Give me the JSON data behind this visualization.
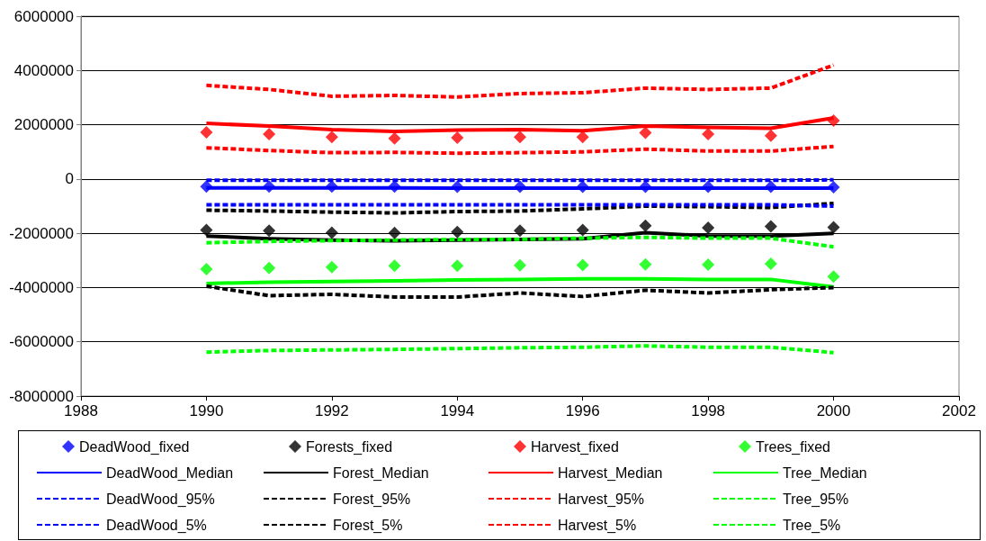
{
  "chart_data": {
    "type": "line",
    "x": [
      1990,
      1991,
      1992,
      1993,
      1994,
      1995,
      1996,
      1997,
      1998,
      1999,
      2000
    ],
    "xlim": [
      1988,
      2002
    ],
    "xticks": [
      1988,
      1990,
      1992,
      1994,
      1996,
      1998,
      2000,
      2002
    ],
    "ylim": [
      -8000000,
      6000000
    ],
    "yticks": [
      -8000000,
      -6000000,
      -4000000,
      -2000000,
      0,
      2000000,
      4000000,
      6000000
    ],
    "grid": "y",
    "legend": "bottom",
    "series": [
      {
        "name": "DeadWood_fixed",
        "type": "scatter",
        "marker": "diamond",
        "color": "#0000ff",
        "values": [
          -280000,
          -280000,
          -280000,
          -280000,
          -290000,
          -290000,
          -290000,
          -290000,
          -290000,
          -290000,
          -300000
        ]
      },
      {
        "name": "Forests_fixed",
        "type": "scatter",
        "marker": "diamond",
        "color": "#000000",
        "values": [
          -1880000,
          -1900000,
          -1980000,
          -1990000,
          -1950000,
          -1900000,
          -1880000,
          -1720000,
          -1800000,
          -1750000,
          -1780000
        ]
      },
      {
        "name": "Harvest_fixed",
        "type": "scatter",
        "marker": "diamond",
        "color": "#ff0000",
        "values": [
          1720000,
          1650000,
          1550000,
          1500000,
          1520000,
          1550000,
          1550000,
          1700000,
          1650000,
          1600000,
          2150000
        ]
      },
      {
        "name": "Trees_fixed",
        "type": "scatter",
        "marker": "diamond",
        "color": "#00ff00",
        "values": [
          -3320000,
          -3280000,
          -3250000,
          -3200000,
          -3200000,
          -3180000,
          -3170000,
          -3150000,
          -3160000,
          -3120000,
          -3600000
        ]
      },
      {
        "name": "DeadWood_Median",
        "line_style": "solid",
        "color": "#0000ff",
        "values": [
          -330000,
          -330000,
          -330000,
          -330000,
          -340000,
          -340000,
          -340000,
          -340000,
          -340000,
          -340000,
          -340000
        ]
      },
      {
        "name": "Forest_Median",
        "line_style": "solid",
        "color": "#000000",
        "values": [
          -2100000,
          -2200000,
          -2250000,
          -2280000,
          -2250000,
          -2230000,
          -2200000,
          -1980000,
          -2100000,
          -2100000,
          -2000000
        ]
      },
      {
        "name": "Harvest_Median",
        "line_style": "solid",
        "color": "#ff0000",
        "values": [
          2050000,
          1950000,
          1820000,
          1750000,
          1800000,
          1820000,
          1780000,
          1950000,
          1900000,
          1870000,
          2250000
        ]
      },
      {
        "name": "Tree_Median",
        "line_style": "solid",
        "color": "#00ff00",
        "values": [
          -3850000,
          -3800000,
          -3780000,
          -3750000,
          -3720000,
          -3700000,
          -3680000,
          -3680000,
          -3700000,
          -3700000,
          -3980000
        ]
      },
      {
        "name": "DeadWood_95%",
        "line_style": "dashed",
        "color": "#0000ff",
        "values": [
          -50000,
          -50000,
          -50000,
          -50000,
          -50000,
          -50000,
          -50000,
          -50000,
          -50000,
          -50000,
          -30000
        ]
      },
      {
        "name": "Forest_95%",
        "line_style": "dashed",
        "color": "#000000",
        "values": [
          -1150000,
          -1180000,
          -1220000,
          -1250000,
          -1200000,
          -1180000,
          -1100000,
          -1000000,
          -1020000,
          -1050000,
          -900000
        ]
      },
      {
        "name": "Harvest_95%",
        "line_style": "dashed",
        "color": "#ff0000",
        "values": [
          3450000,
          3300000,
          3050000,
          3080000,
          3020000,
          3150000,
          3180000,
          3350000,
          3300000,
          3350000,
          4200000
        ]
      },
      {
        "name": "Tree_95%",
        "line_style": "dashed",
        "color": "#00ff00",
        "values": [
          -2350000,
          -2300000,
          -2270000,
          -2250000,
          -2230000,
          -2220000,
          -2180000,
          -2150000,
          -2180000,
          -2180000,
          -2500000
        ]
      },
      {
        "name": "DeadWood_5%",
        "line_style": "dashed",
        "color": "#0000ff",
        "values": [
          -950000,
          -950000,
          -950000,
          -950000,
          -950000,
          -950000,
          -950000,
          -950000,
          -950000,
          -950000,
          -1000000
        ]
      },
      {
        "name": "Forest_5%",
        "line_style": "dashed",
        "color": "#000000",
        "values": [
          -3950000,
          -4300000,
          -4250000,
          -4350000,
          -4350000,
          -4200000,
          -4330000,
          -4100000,
          -4200000,
          -4080000,
          -4000000
        ]
      },
      {
        "name": "Harvest_5%",
        "line_style": "dashed",
        "color": "#ff0000",
        "values": [
          1150000,
          1050000,
          970000,
          980000,
          950000,
          970000,
          1000000,
          1100000,
          1030000,
          1030000,
          1200000
        ]
      },
      {
        "name": "Tree_5%",
        "line_style": "dashed",
        "color": "#00ff00",
        "values": [
          -6380000,
          -6320000,
          -6300000,
          -6280000,
          -6250000,
          -6220000,
          -6200000,
          -6150000,
          -6200000,
          -6200000,
          -6400000
        ]
      }
    ]
  }
}
